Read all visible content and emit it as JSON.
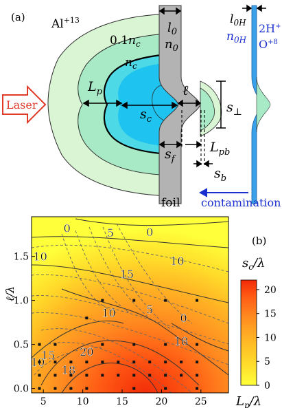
{
  "panel_a": {
    "label": "(a)",
    "ion_label": "Al",
    "ion_charge": "+13",
    "contour_01nc": "0.1",
    "contour_nc_sym": "n",
    "contour_nc_sub": "c",
    "laser_label": "Laser",
    "Lp_sym": "L",
    "Lp_sub": "p",
    "sc_sym": "s",
    "sc_sub": "c",
    "ell_sym": "ℓ",
    "l0_sym": "l",
    "l0_sub": "0",
    "n0_sym": "n",
    "n0_sub": "0",
    "sperp_sym": "s",
    "sperp_sub": "⊥",
    "sf_sym": "s",
    "sf_sub": "f",
    "Lpb_sym": "L",
    "Lpb_sub": "pb",
    "sb_sym": "s",
    "sb_sub": "b",
    "foil_label": "foil",
    "l0H_sym": "l",
    "l0H_sub": "0H",
    "n0H_sym": "n",
    "n0H_sub": "0H",
    "species_H": "2H",
    "species_H_sup": "+",
    "species_O": "O",
    "species_O_sup": "+8",
    "contamination_label": "contamination",
    "colors": {
      "foil": "#b3b3b3",
      "outer_plasma": "#d9f5d4",
      "mid_plasma": "#a8eac6",
      "inner_plasma": "#4dd9e6",
      "core_plasma": "#1fc3f0",
      "contam_layer": "#3aa0e8",
      "laser_arrow": "#e03a2a",
      "contam_text": "#1a2fd0"
    }
  },
  "chart_data": {
    "type": "heatmap",
    "panel_label": "(b)",
    "xlabel_sym": "L",
    "xlabel_sub": "p",
    "xlabel_rest": "/λ",
    "ylabel": "ℓ/λ",
    "colorbar_label_sym": "s",
    "colorbar_label_sub": "c",
    "colorbar_label_rest": "/λ",
    "xlim": [
      3.5,
      28.5
    ],
    "ylim": [
      -0.05,
      1.95
    ],
    "xticks": [
      "5",
      "10",
      "15",
      "20",
      "25"
    ],
    "yticks": [
      "0.0",
      "0.5",
      "1.0",
      "1.5"
    ],
    "colorbar_ticks": [
      "0",
      "5",
      "10",
      "15",
      "20"
    ],
    "colorbar_range": [
      0,
      22
    ],
    "colormap": [
      "#ffff3a",
      "#ffdc2a",
      "#ffb224",
      "#ff8a20",
      "#ff5a14",
      "#f22a08"
    ],
    "contour_labels": [
      {
        "text": "0",
        "x": 18.5,
        "y": 1.78
      },
      {
        "text": "5",
        "x": 13.5,
        "y": 1.77
      },
      {
        "text": "0",
        "x": 8.0,
        "y": 1.82
      },
      {
        "text": "10",
        "x": 4.6,
        "y": 1.5
      },
      {
        "text": "10",
        "x": 22.0,
        "y": 1.45
      },
      {
        "text": "15",
        "x": 15.6,
        "y": 1.3
      },
      {
        "text": "10",
        "x": 13.3,
        "y": 0.86
      },
      {
        "text": "5",
        "x": 18.5,
        "y": 0.9
      },
      {
        "text": "0",
        "x": 22.8,
        "y": 0.8
      },
      {
        "text": "18",
        "x": 22.5,
        "y": 0.54
      },
      {
        "text": "20",
        "x": 10.5,
        "y": 0.42
      },
      {
        "text": "18",
        "x": 8.2,
        "y": 0.21
      },
      {
        "text": "15",
        "x": 5.6,
        "y": 0.38
      },
      {
        "text": "10",
        "x": 4.3,
        "y": 0.3
      }
    ],
    "simulation_points": [
      {
        "x": 12.5,
        "y": 1.0
      },
      {
        "x": 16.5,
        "y": 1.0
      },
      {
        "x": 20.5,
        "y": 1.0
      },
      {
        "x": 24.5,
        "y": 1.0
      },
      {
        "x": 10.5,
        "y": 0.8
      },
      {
        "x": 4.5,
        "y": 0.5
      },
      {
        "x": 6.5,
        "y": 0.5
      },
      {
        "x": 12.5,
        "y": 0.5
      },
      {
        "x": 16.5,
        "y": 0.5
      },
      {
        "x": 20.5,
        "y": 0.5
      },
      {
        "x": 24.5,
        "y": 0.5
      },
      {
        "x": 4.5,
        "y": 0.3
      },
      {
        "x": 6.5,
        "y": 0.3
      },
      {
        "x": 8.5,
        "y": 0.3
      },
      {
        "x": 10.5,
        "y": 0.3
      },
      {
        "x": 12.5,
        "y": 0.3
      },
      {
        "x": 14.5,
        "y": 0.3
      },
      {
        "x": 16.5,
        "y": 0.3
      },
      {
        "x": 18.5,
        "y": 0.3
      },
      {
        "x": 20.5,
        "y": 0.3
      },
      {
        "x": 22.5,
        "y": 0.3
      },
      {
        "x": 24.5,
        "y": 0.3
      },
      {
        "x": 4.5,
        "y": 0.15
      },
      {
        "x": 6.5,
        "y": 0.15
      },
      {
        "x": 8.5,
        "y": 0.15
      },
      {
        "x": 10.5,
        "y": 0.15
      },
      {
        "x": 12.5,
        "y": 0.15
      },
      {
        "x": 14.5,
        "y": 0.15
      },
      {
        "x": 16.5,
        "y": 0.15
      },
      {
        "x": 18.5,
        "y": 0.15
      },
      {
        "x": 20.5,
        "y": 0.15
      },
      {
        "x": 22.5,
        "y": 0.15
      },
      {
        "x": 24.5,
        "y": 0.15
      },
      {
        "x": 4.5,
        "y": 0.0
      },
      {
        "x": 6.5,
        "y": 0.0
      },
      {
        "x": 8.5,
        "y": 0.0
      },
      {
        "x": 10.5,
        "y": 0.0
      },
      {
        "x": 16.5,
        "y": 0.0
      },
      {
        "x": 20.5,
        "y": 0.0
      },
      {
        "x": 24.5,
        "y": 0.0
      }
    ]
  }
}
